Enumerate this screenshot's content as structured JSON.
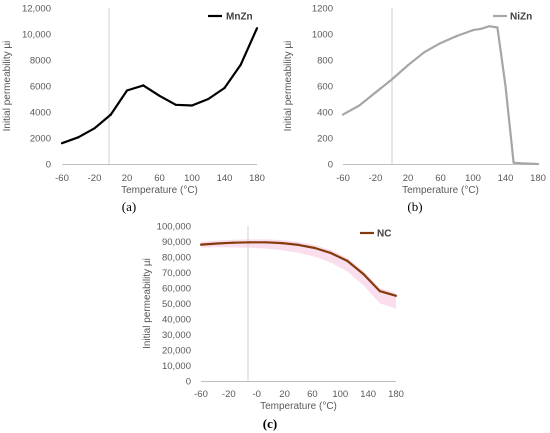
{
  "chart_data": [
    {
      "type": "line",
      "panel_label": "(a)",
      "xlabel": "Temperature  (°C)",
      "ylabel": "Initial permeability µi",
      "xlim": [
        -60,
        180
      ],
      "ylim": [
        0,
        12000
      ],
      "x_ticks": [
        "-60",
        "-20",
        "20",
        "60",
        "100",
        "140",
        "180"
      ],
      "y_ticks": [
        "0",
        "2000",
        "4000",
        "6000",
        "8000",
        "10,000",
        "12,000"
      ],
      "legend_position": "top-right",
      "grid": false,
      "series": [
        {
          "name": "MnZn",
          "color": "#000000",
          "x": [
            -60,
            -40,
            -20,
            0,
            20,
            40,
            60,
            80,
            100,
            120,
            140,
            160,
            180
          ],
          "y": [
            1600,
            2050,
            2750,
            3800,
            5650,
            6050,
            5250,
            4550,
            4500,
            5000,
            5850,
            7650,
            10450
          ]
        }
      ]
    },
    {
      "type": "line",
      "panel_label": "(b)",
      "xlabel": "Temperature  (°C)",
      "ylabel": "Initial permeability µi",
      "xlim": [
        -60,
        180
      ],
      "ylim": [
        0,
        1200
      ],
      "x_ticks": [
        "-60",
        "-20",
        "20",
        "60",
        "100",
        "140",
        "180"
      ],
      "y_ticks": [
        "0",
        "200",
        "400",
        "600",
        "800",
        "1000",
        "1200"
      ],
      "legend_position": "top-right",
      "grid": false,
      "series": [
        {
          "name": "NiZn",
          "color": "#a6a6a6",
          "x": [
            -60,
            -40,
            -20,
            0,
            20,
            40,
            60,
            80,
            100,
            110,
            120,
            130,
            140,
            150,
            160,
            180
          ],
          "y": [
            380,
            450,
            550,
            650,
            760,
            860,
            930,
            985,
            1030,
            1040,
            1060,
            1050,
            600,
            10,
            5,
            0
          ]
        }
      ]
    },
    {
      "type": "line",
      "panel_label": "(c)",
      "xlabel": "Temperature  (°C)",
      "ylabel": "Initial permeability µi",
      "xlim": [
        -60,
        180
      ],
      "ylim": [
        0,
        100000
      ],
      "x_ticks": [
        "-60",
        "-20",
        "-0",
        "20",
        "60",
        "100",
        "140",
        "180"
      ],
      "y_ticks": [
        "0",
        "10,000",
        "20,000",
        "30,000",
        "40,000",
        "50,000",
        "60,000",
        "70,000",
        "80,000",
        "90,000",
        "100,000"
      ],
      "legend_position": "top-right",
      "grid": false,
      "series": [
        {
          "name": "NC",
          "color": "#843c0c",
          "band_color": "#f4b6d8",
          "x": [
            -60,
            -40,
            -20,
            0,
            20,
            40,
            60,
            80,
            100,
            120,
            140,
            160,
            180
          ],
          "y": [
            88000,
            88700,
            89200,
            89500,
            89500,
            89000,
            87800,
            85800,
            82500,
            77500,
            69000,
            58000,
            55000
          ]
        }
      ]
    }
  ]
}
